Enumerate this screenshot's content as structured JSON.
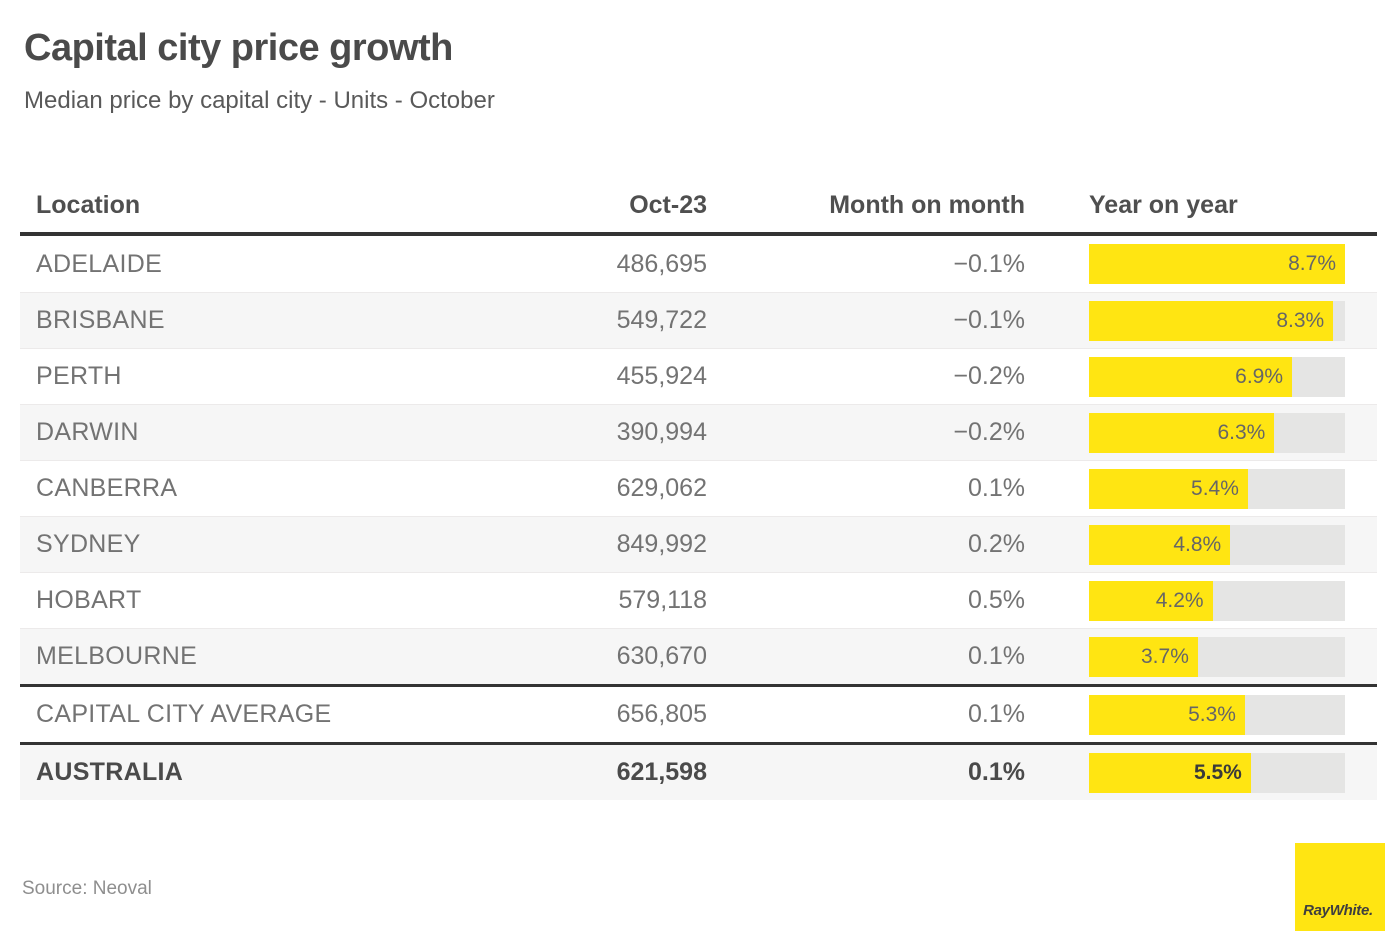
{
  "title": "Capital city price growth",
  "subtitle": "Median price by capital city - Units - October",
  "source": "Source: Neoval",
  "logo": {
    "brand": "RayWhite."
  },
  "colors": {
    "accent_yellow": "#ffe512",
    "bar_track_gray": "#e5e5e4",
    "stripe_gray": "#f6f6f6",
    "dark_rule": "#333333"
  },
  "table": {
    "columns": [
      "Location",
      "Oct-23",
      "Month on month",
      "Year on year"
    ],
    "bar_max": 8.7,
    "rows": [
      {
        "location": "ADELAIDE",
        "oct23": "486,695",
        "mom": "−0.1%",
        "yoy": 8.7,
        "yoy_label": "8.7%",
        "striped": false,
        "bold": false,
        "divider_above": false
      },
      {
        "location": "BRISBANE",
        "oct23": "549,722",
        "mom": "−0.1%",
        "yoy": 8.3,
        "yoy_label": "8.3%",
        "striped": true,
        "bold": false,
        "divider_above": false
      },
      {
        "location": "PERTH",
        "oct23": "455,924",
        "mom": "−0.2%",
        "yoy": 6.9,
        "yoy_label": "6.9%",
        "striped": false,
        "bold": false,
        "divider_above": false
      },
      {
        "location": "DARWIN",
        "oct23": "390,994",
        "mom": "−0.2%",
        "yoy": 6.3,
        "yoy_label": "6.3%",
        "striped": true,
        "bold": false,
        "divider_above": false
      },
      {
        "location": "CANBERRA",
        "oct23": "629,062",
        "mom": "0.1%",
        "yoy": 5.4,
        "yoy_label": "5.4%",
        "striped": false,
        "bold": false,
        "divider_above": false
      },
      {
        "location": "SYDNEY",
        "oct23": "849,992",
        "mom": "0.2%",
        "yoy": 4.8,
        "yoy_label": "4.8%",
        "striped": true,
        "bold": false,
        "divider_above": false
      },
      {
        "location": "HOBART",
        "oct23": "579,118",
        "mom": "0.5%",
        "yoy": 4.2,
        "yoy_label": "4.2%",
        "striped": false,
        "bold": false,
        "divider_above": false
      },
      {
        "location": "MELBOURNE",
        "oct23": "630,670",
        "mom": "0.1%",
        "yoy": 3.7,
        "yoy_label": "3.7%",
        "striped": true,
        "bold": false,
        "divider_above": false
      },
      {
        "location": "CAPITAL CITY AVERAGE",
        "oct23": "656,805",
        "mom": "0.1%",
        "yoy": 5.3,
        "yoy_label": "5.3%",
        "striped": false,
        "bold": false,
        "divider_above": true
      },
      {
        "location": "AUSTRALIA",
        "oct23": "621,598",
        "mom": "0.1%",
        "yoy": 5.5,
        "yoy_label": "5.5%",
        "striped": true,
        "bold": true,
        "divider_above": true
      }
    ]
  },
  "chart_data": {
    "type": "table",
    "title": "Capital city price growth",
    "subtitle": "Median price by capital city - Units - October",
    "columns": [
      "Location",
      "Oct-23",
      "Month on month",
      "Year on year"
    ],
    "rows": [
      [
        "ADELAIDE",
        "486,695",
        "−0.1%",
        "8.7%"
      ],
      [
        "BRISBANE",
        "549,722",
        "−0.1%",
        "8.3%"
      ],
      [
        "PERTH",
        "455,924",
        "−0.2%",
        "6.9%"
      ],
      [
        "DARWIN",
        "390,994",
        "−0.2%",
        "6.3%"
      ],
      [
        "CANBERRA",
        "629,062",
        "0.1%",
        "5.4%"
      ],
      [
        "SYDNEY",
        "849,992",
        "0.2%",
        "4.8%"
      ],
      [
        "HOBART",
        "579,118",
        "0.5%",
        "4.2%"
      ],
      [
        "MELBOURNE",
        "630,670",
        "0.1%",
        "3.7%"
      ],
      [
        "CAPITAL CITY AVERAGE",
        "656,805",
        "0.1%",
        "5.3%"
      ],
      [
        "AUSTRALIA",
        "621,598",
        "0.1%",
        "5.5%"
      ]
    ],
    "bar_column": "Year on year",
    "bar_values": [
      8.7,
      8.3,
      6.9,
      6.3,
      5.4,
      4.8,
      4.2,
      3.7,
      5.3,
      5.5
    ],
    "bar_axis_range": [
      0,
      8.7
    ],
    "bar_color": "#ffe512",
    "source": "Source: Neoval"
  }
}
